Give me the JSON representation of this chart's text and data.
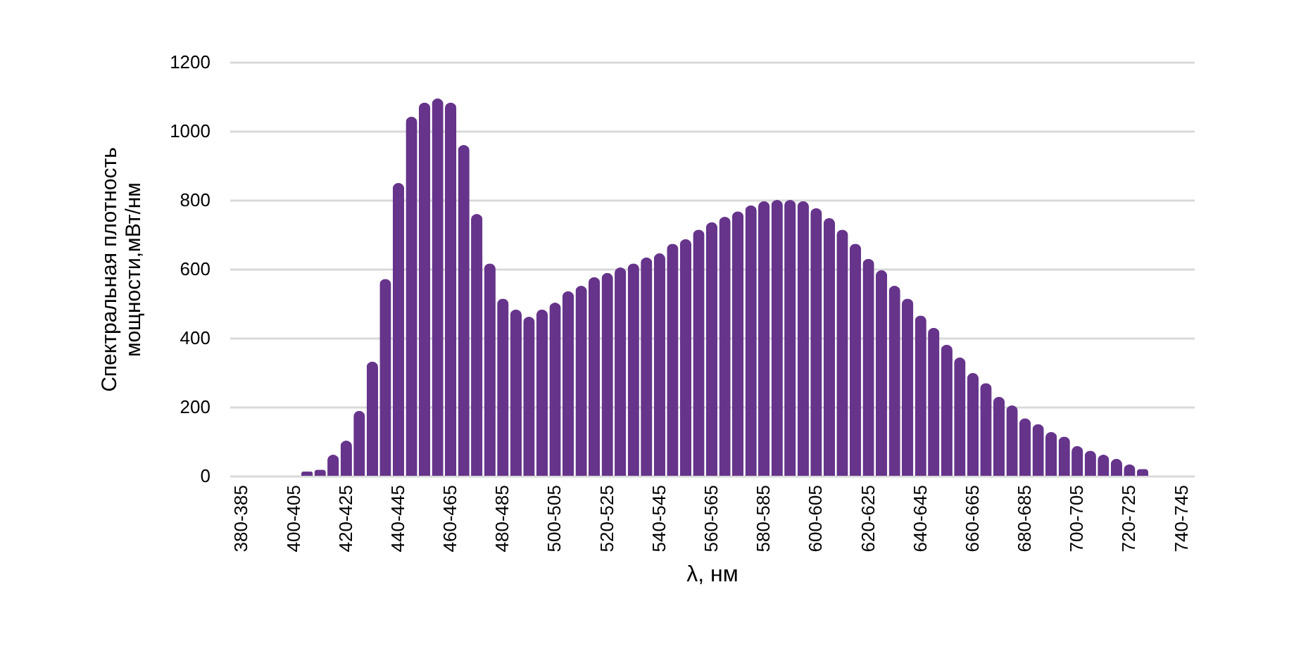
{
  "chart_data": {
    "type": "bar",
    "xlabel": "λ, нм",
    "ylabel": "Спектральная плотность\nмощности,мВт/нм",
    "color": "#66348b",
    "categories": [
      "380-385",
      null,
      null,
      null,
      "400-405",
      null,
      null,
      null,
      "420-425",
      null,
      null,
      null,
      "440-445",
      null,
      null,
      null,
      "460-465",
      null,
      null,
      null,
      "480-485",
      null,
      null,
      null,
      "500-505",
      null,
      null,
      null,
      "520-525",
      null,
      null,
      null,
      "540-545",
      null,
      null,
      null,
      "560-565",
      null,
      null,
      null,
      "580-585",
      null,
      null,
      null,
      "600-605",
      null,
      null,
      null,
      "620-625",
      null,
      null,
      null,
      "640-645",
      null,
      null,
      null,
      "660-665",
      null,
      null,
      null,
      "680-685",
      null,
      null,
      null,
      "700-705",
      null,
      null,
      null,
      "720-725",
      null,
      null,
      null,
      "740-745"
    ],
    "values": [
      null,
      null,
      null,
      null,
      null,
      12,
      18,
      61,
      102,
      188,
      331,
      571,
      849,
      1041,
      1082,
      1094,
      1082,
      959,
      759,
      616,
      514,
      482,
      461,
      482,
      502,
      535,
      551,
      576,
      588,
      604,
      616,
      633,
      645,
      673,
      686,
      714,
      735,
      751,
      767,
      784,
      796,
      800,
      800,
      796,
      776,
      747,
      714,
      673,
      629,
      596,
      551,
      514,
      465,
      429,
      380,
      343,
      298,
      269,
      229,
      204,
      167,
      150,
      127,
      114,
      86,
      73,
      61,
      49,
      33,
      20,
      null,
      null,
      null
    ],
    "ylim": [
      0,
      1200
    ],
    "yticks": [
      0,
      200,
      400,
      600,
      800,
      1000,
      1200
    ],
    "grid": "y"
  }
}
